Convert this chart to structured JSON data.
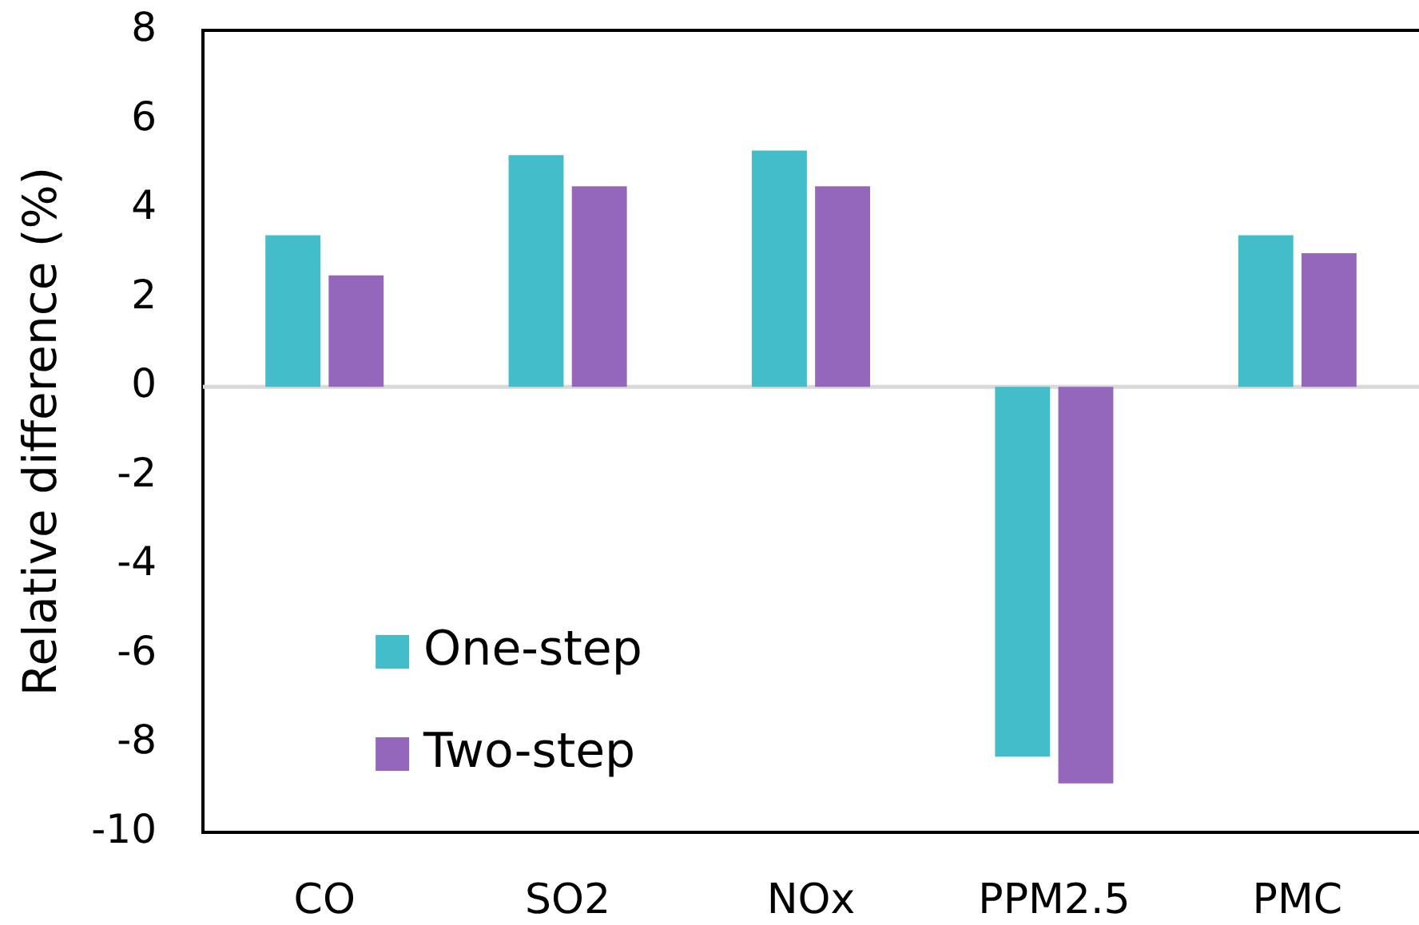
{
  "chart_data": {
    "type": "bar",
    "ylabel": "Relative difference (%)",
    "categories": [
      "CO",
      "SO2",
      "NOx",
      "PPM2.5",
      "PMC"
    ],
    "series": [
      {
        "name": "One-step",
        "color": "#42bdc9",
        "values": [
          3.4,
          5.2,
          5.3,
          -8.3,
          3.4
        ]
      },
      {
        "name": "Two-step",
        "color": "#9467bd",
        "values": [
          2.5,
          4.5,
          4.5,
          -8.9,
          3.0
        ]
      }
    ],
    "ylim": [
      -10,
      8
    ],
    "yticks": [
      -10,
      -8,
      -6,
      -4,
      -2,
      0,
      2,
      4,
      6,
      8
    ],
    "legend": "bottom left"
  }
}
